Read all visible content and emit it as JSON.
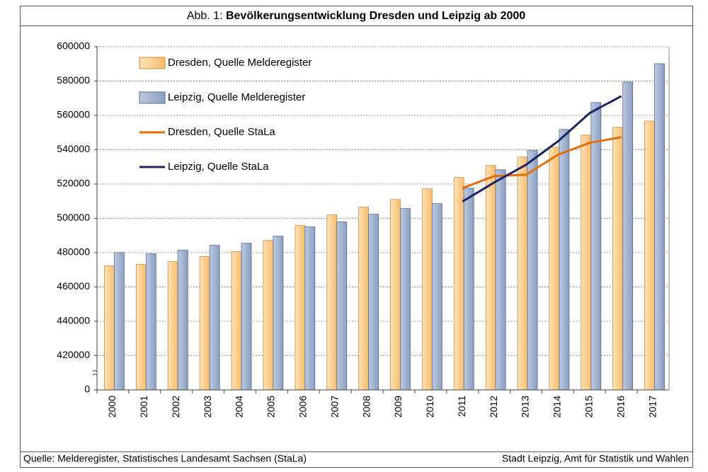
{
  "chart_data": {
    "type": "bar",
    "title_prefix": "Abb. 1:",
    "title": "Bevölkerungsentwicklung Dresden und Leipzig ab 2000",
    "categories": [
      "2000",
      "2001",
      "2002",
      "2003",
      "2004",
      "2005",
      "2006",
      "2007",
      "2008",
      "2009",
      "2010",
      "2011",
      "2012",
      "2013",
      "2014",
      "2015",
      "2016",
      "2017"
    ],
    "series": [
      {
        "name": "Dresden, Quelle Melderegister",
        "kind": "bar",
        "color": "#fbc680",
        "values": [
          472300,
          473100,
          474800,
          477700,
          480600,
          487100,
          495800,
          502000,
          506500,
          511000,
          517200,
          523800,
          530800,
          535700,
          541500,
          548500,
          553000,
          556700
        ]
      },
      {
        "name": "Leipzig, Quelle Melderegister",
        "kind": "bar",
        "color": "#95a9c9",
        "values": [
          480100,
          479300,
          481400,
          484300,
          485500,
          489600,
          495000,
          497900,
          502400,
          505700,
          508600,
          517600,
          528300,
          539500,
          551800,
          567500,
          579400,
          590100
        ]
      },
      {
        "name": "Dresden, Quelle StaLa",
        "kind": "line",
        "color": "#e46c0a",
        "values": [
          null,
          null,
          null,
          null,
          null,
          null,
          null,
          null,
          null,
          null,
          null,
          517600,
          524600,
          525400,
          537000,
          544000,
          547300,
          null
        ]
      },
      {
        "name": "Leipzig, Quelle StaLa",
        "kind": "line",
        "color": "#1b2462",
        "values": [
          null,
          null,
          null,
          null,
          null,
          null,
          null,
          null,
          null,
          null,
          null,
          509800,
          520900,
          531200,
          544800,
          561300,
          571200,
          null
        ]
      }
    ],
    "ylim": [
      400000,
      600000
    ],
    "yticks": [
      {
        "value": 400000,
        "label": "0"
      },
      420000,
      440000,
      460000,
      480000,
      500000,
      520000,
      540000,
      560000,
      580000,
      600000
    ],
    "grid": true,
    "source": "Quelle: Melderegister, Statistisches Landesamt Sachsen (StaLa)",
    "credit": "Stadt Leipzig, Amt für Statistik und Wahlen"
  }
}
